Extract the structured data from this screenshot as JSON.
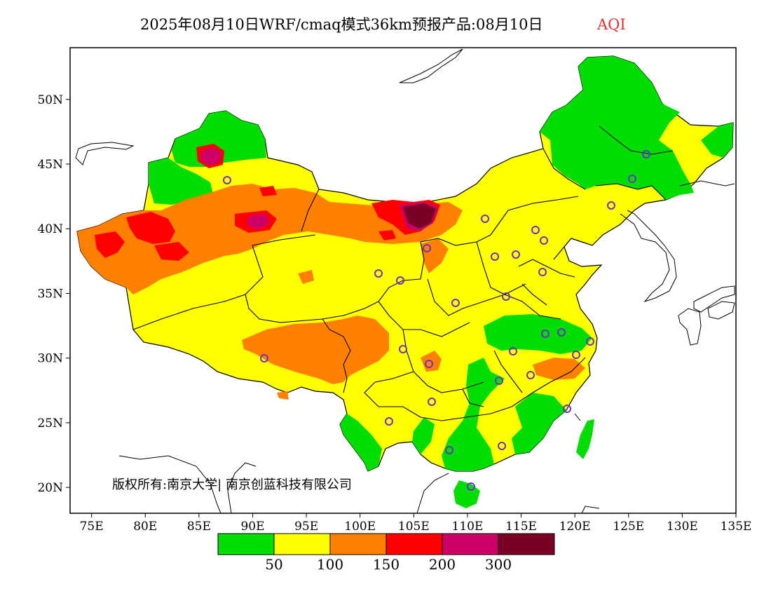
{
  "title": {
    "main": "2025年08月10日WRF/cmaq模式36km预报产品:08月10日",
    "accent": "AQI",
    "accent_color": "#e03030"
  },
  "copyright": "版权所有:南京大学| 南京创蓝科技有限公司",
  "lon_ticks": [
    "75E",
    "80E",
    "85E",
    "90E",
    "95E",
    "100E",
    "105E",
    "110E",
    "115E",
    "120E",
    "125E",
    "130E",
    "135E"
  ],
  "lat_ticks": [
    "20N",
    "25N",
    "30N",
    "35N",
    "40N",
    "45N",
    "50N"
  ],
  "legend": {
    "colors": [
      "#00dd00",
      "#ffff00",
      "#ff8000",
      "#ff0000",
      "#cc0066",
      "#7a0026"
    ],
    "labels": [
      "50",
      "100",
      "150",
      "200",
      "300"
    ]
  }
}
